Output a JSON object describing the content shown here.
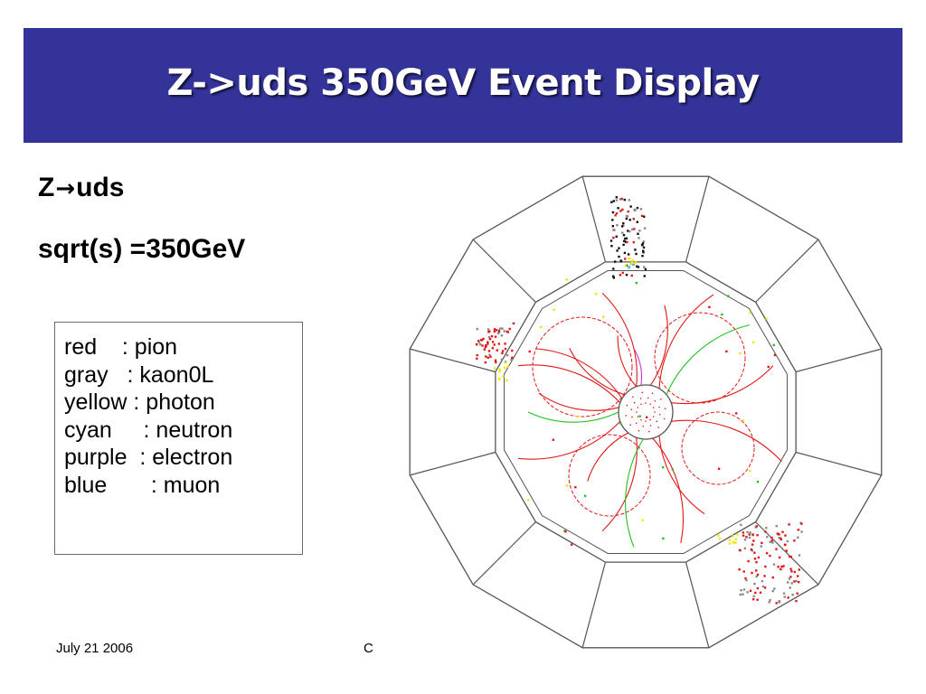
{
  "slide": {
    "title": "Z->uds 350GeV Event Display",
    "line1_left": "Z",
    "line1_arrow": "→",
    "line1_right": "uds",
    "line2": "sqrt(s) =350GeV"
  },
  "legend": {
    "items": [
      "red    : pion",
      "gray   : kaon0L",
      "yellow : photon",
      "cyan     : neutron",
      "purple  : electron",
      "blue       : muon"
    ]
  },
  "footer": {
    "date": "July 21 2006",
    "middle": "C"
  },
  "colors": {
    "banner": "#33339a",
    "pion": "#e01818",
    "kaon0L": "#8a8a8a",
    "photon": "#f2e600",
    "neutron": "#20d0e0",
    "electron": "#d030d0",
    "muon": "#2030e0",
    "track_green": "#20c020",
    "detector_lines": "#555555"
  }
}
